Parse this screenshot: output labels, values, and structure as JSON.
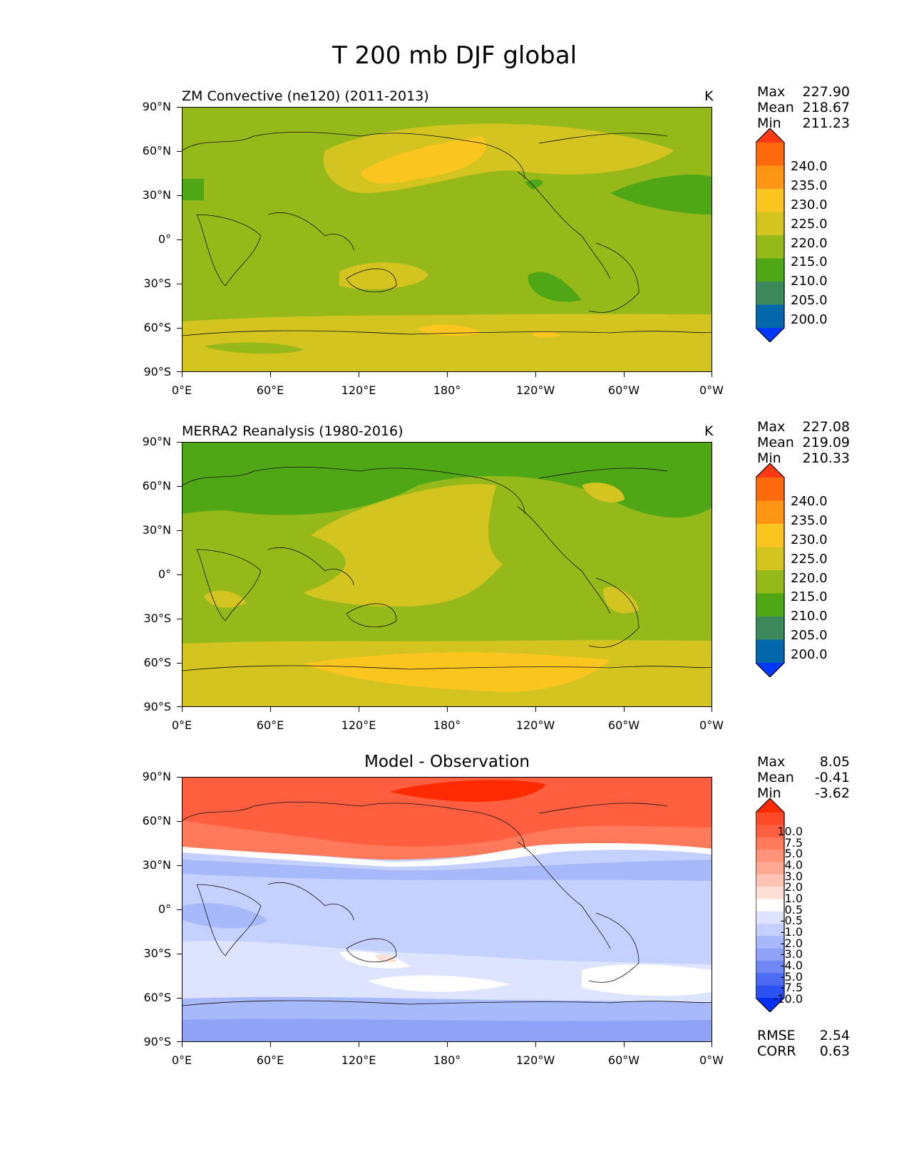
{
  "title": "T 200 mb DJF global",
  "axes": {
    "lat_labels": [
      "90°N",
      "60°N",
      "30°N",
      "0°",
      "30°S",
      "60°S",
      "90°S"
    ],
    "lon_labels": [
      "0°E",
      "60°E",
      "120°E",
      "180°",
      "120°W",
      "60°W",
      "0°W"
    ]
  },
  "panels": [
    {
      "name": "model",
      "title": "ZM Convective (ne120) (2011-2013)",
      "units": "K",
      "stats": [
        {
          "label": "Max",
          "value": "227.90"
        },
        {
          "label": "Mean",
          "value": "218.67"
        },
        {
          "label": "Min",
          "value": "211.23"
        }
      ],
      "colorbar_labels": [
        "240.0",
        "235.0",
        "230.0",
        "225.0",
        "220.0",
        "215.0",
        "210.0",
        "205.0",
        "200.0"
      ],
      "colorbar_colors": [
        "#fd3a14",
        "#fd6a0e",
        "#fd9512",
        "#fbc51f",
        "#d3c41f",
        "#96b91a",
        "#4fa716",
        "#3c8a5c",
        "#0068ab",
        "#0038fb"
      ]
    },
    {
      "name": "obs",
      "title": "MERRA2 Reanalysis (1980-2016)",
      "units": "K",
      "stats": [
        {
          "label": "Max",
          "value": "227.08"
        },
        {
          "label": "Mean",
          "value": "219.09"
        },
        {
          "label": "Min",
          "value": "210.33"
        }
      ],
      "colorbar_labels": [
        "240.0",
        "235.0",
        "230.0",
        "225.0",
        "220.0",
        "215.0",
        "210.0",
        "205.0",
        "200.0"
      ],
      "colorbar_colors": [
        "#fd3a14",
        "#fd6a0e",
        "#fd9512",
        "#fbc51f",
        "#d3c41f",
        "#96b91a",
        "#4fa716",
        "#3c8a5c",
        "#0068ab",
        "#0038fb"
      ]
    },
    {
      "name": "diff",
      "title": "Model - Observation",
      "stats": [
        {
          "label": "Max",
          "value": "8.05"
        },
        {
          "label": "Mean",
          "value": "-0.41"
        },
        {
          "label": "Min",
          "value": "-3.62"
        }
      ],
      "colorbar_labels": [
        "10.0",
        "7.5",
        "5.0",
        "4.0",
        "3.0",
        "2.0",
        "1.0",
        "0.5",
        "-0.5",
        "-1.0",
        "-2.0",
        "-3.0",
        "-4.0",
        "-5.0",
        "-7.5",
        "-10.0"
      ],
      "colorbar_colors": [
        "#ff2a00",
        "#ff4a28",
        "#ff5f3f",
        "#ff7a5a",
        "#ff9176",
        "#ffa994",
        "#ffc4b4",
        "#ffe0d6",
        "#ffffff",
        "#dde4ff",
        "#c4d0ff",
        "#a7b8fb",
        "#8ea3f7",
        "#6f88f5",
        "#4d6cf4",
        "#2e52f2",
        "#0430f4"
      ],
      "rmse": {
        "label": "RMSE",
        "value": "2.54"
      },
      "corr": {
        "label": "CORR",
        "value": "0.63"
      }
    }
  ]
}
